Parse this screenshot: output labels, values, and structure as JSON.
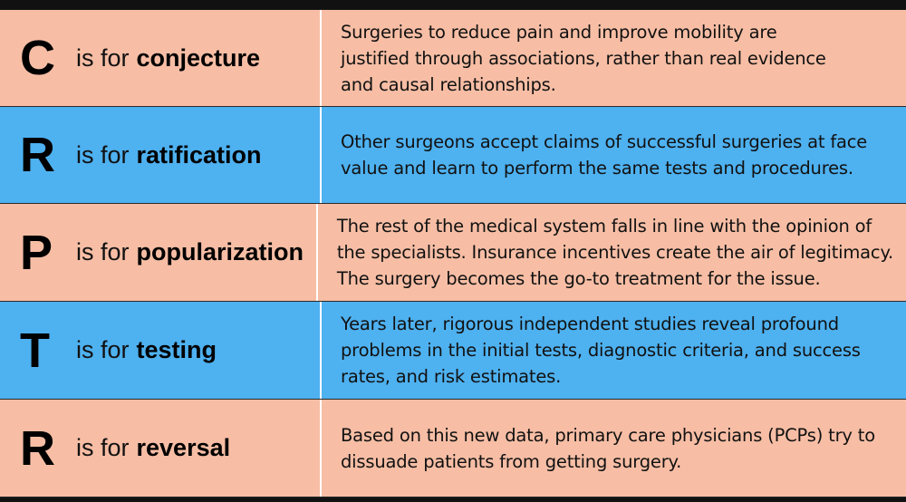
{
  "rows": [
    {
      "letter": "C",
      "prefix": "is for",
      "word": "conjecture",
      "lines": [
        "Surgeries to reduce pain and improve mobility are",
        "justified through associations, rather than real evidence",
        "and causal relationships."
      ]
    },
    {
      "letter": "R",
      "prefix": "is for",
      "word": "ratification",
      "lines": [
        "Other surgeons accept claims of successful surgeries at face",
        "value and learn to perform the same tests and procedures."
      ]
    },
    {
      "letter": "P",
      "prefix": "is for",
      "word": "popularization",
      "lines": [
        "The rest of the medical system falls in line with the opinion of",
        "the specialists. Insurance incentives create the air of legitimacy.",
        "The surgery becomes the go-to treatment for the issue."
      ]
    },
    {
      "letter": "T",
      "prefix": "is for",
      "word": "testing",
      "lines": [
        "Years later, rigorous independent studies reveal profound",
        "problems in the initial tests, diagnostic criteria, and success",
        "rates, and risk estimates."
      ]
    },
    {
      "letter": "R",
      "prefix": "is for",
      "word": "reversal",
      "lines": [
        "Based on this new data, primary care physicians (PCPs) try to",
        "dissuade patients from getting surgery."
      ]
    }
  ],
  "colors": {
    "salmon": "#f7bea5",
    "blue": "#4eb1f0",
    "frame": "#111111"
  }
}
